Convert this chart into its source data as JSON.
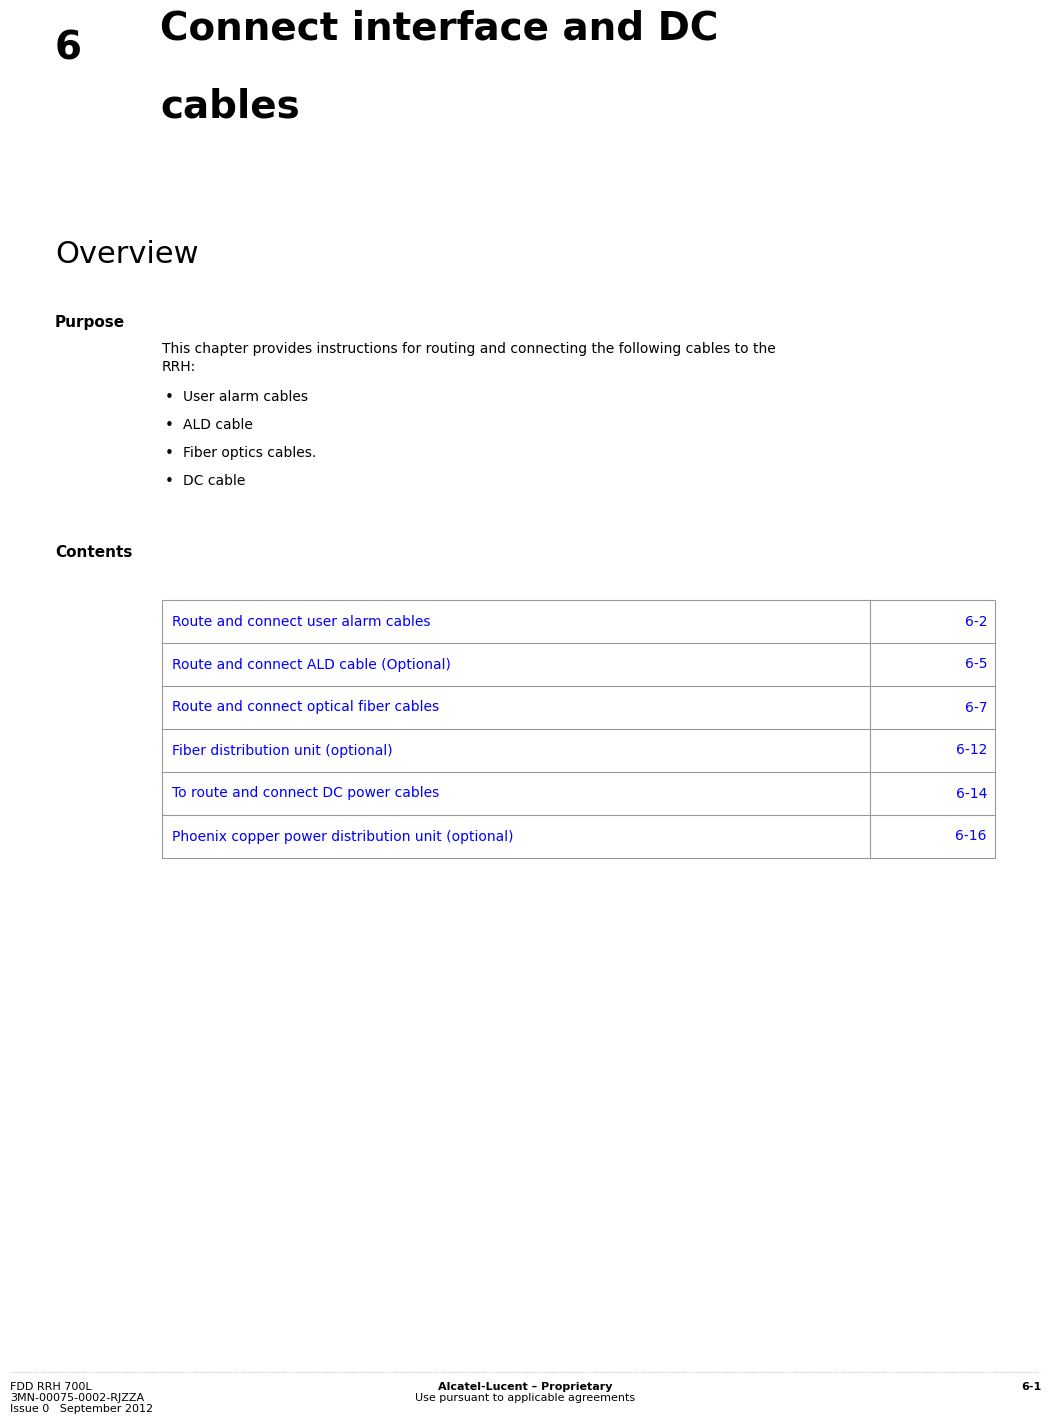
{
  "bg_color": "#ffffff",
  "chapter_number": "6",
  "chapter_title_line1": "Connect interface and DC",
  "chapter_title_line2": "cables",
  "overview_label": "Overview",
  "purpose_label": "Purpose",
  "purpose_text_line1": "This chapter provides instructions for routing and connecting the following cables to the",
  "purpose_text_line2": "RRH:",
  "bullet_items": [
    "User alarm cables",
    "ALD cable",
    "Fiber optics cables.",
    "DC cable"
  ],
  "contents_label": "Contents",
  "table_entries": [
    {
      "text": "Route and connect user alarm cables",
      "page": "6-2"
    },
    {
      "text": "Route and connect ALD cable (Optional)",
      "page": "6-5"
    },
    {
      "text": "Route and connect optical fiber cables",
      "page": "6-7"
    },
    {
      "text": "Fiber distribution unit (optional)",
      "page": "6-12"
    },
    {
      "text": "To route and connect DC power cables",
      "page": "6-14"
    },
    {
      "text": "Phoenix copper power distribution unit (optional)",
      "page": "6-16"
    }
  ],
  "link_color": "#0000ff",
  "footer_left_line1": "FDD RRH 700L",
  "footer_left_line2": "3MN-00075-0002-RJZZA",
  "footer_left_line3": "Issue 0   September 2012",
  "footer_center_line1": "Alcatel-Lucent – Proprietary",
  "footer_center_line2": "Use pursuant to applicable agreements",
  "footer_right": "6-1",
  "title_font_size": 28,
  "overview_font_size": 22,
  "purpose_font_size": 11,
  "body_font_size": 10,
  "table_font_size": 10,
  "footer_font_size": 8
}
